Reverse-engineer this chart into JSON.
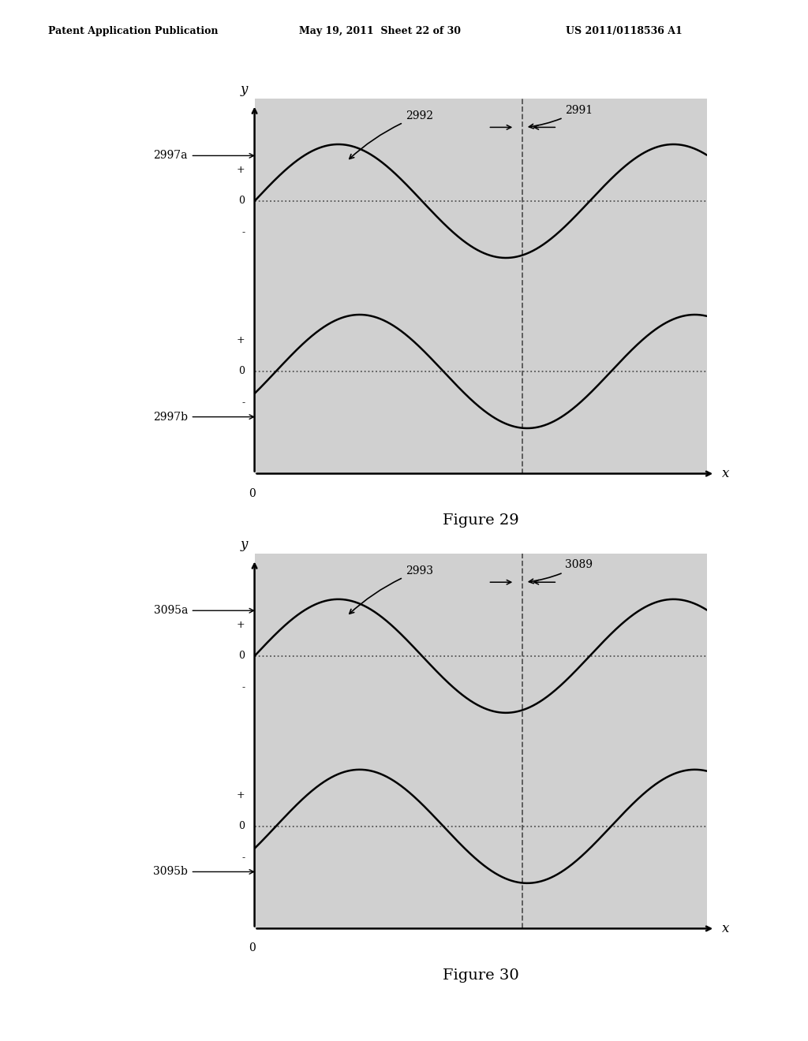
{
  "header_left": "Patent Application Publication",
  "header_mid": "May 19, 2011  Sheet 22 of 30",
  "header_right": "US 2011/0118536 A1",
  "fig29_title": "Figure 29",
  "fig30_title": "Figure 30",
  "fig29": {
    "label_a": "2997a",
    "label_b": "2997b",
    "label_1": "2992",
    "label_2": "2991"
  },
  "fig30": {
    "label_a": "3095a",
    "label_b": "3095b",
    "label_1": "2993",
    "label_2": "3089"
  },
  "bg_color": "#ffffff",
  "plot_bg": "#d0d0d0",
  "wave_color": "#000000",
  "dot_color": "#555555"
}
